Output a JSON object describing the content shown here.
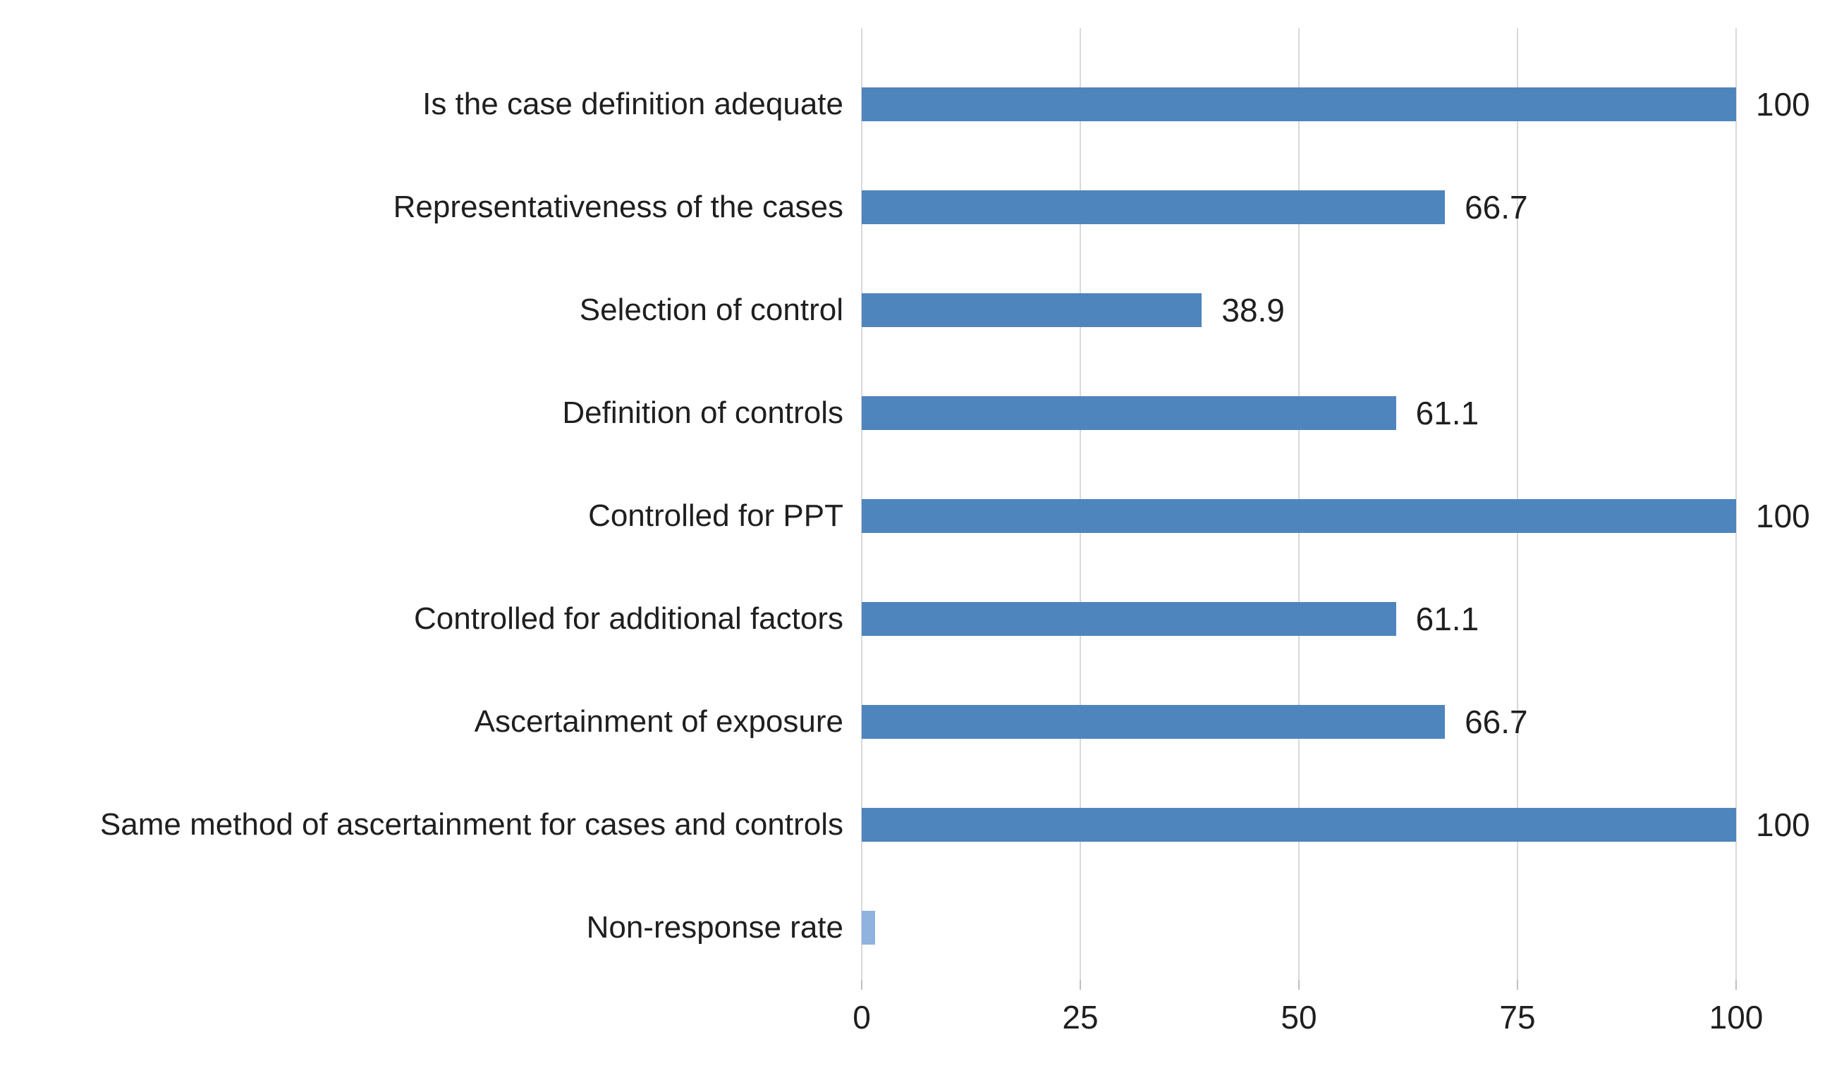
{
  "chart_data": {
    "type": "bar",
    "orientation": "horizontal",
    "title": "",
    "xlabel": "",
    "ylabel": "",
    "legend": "none",
    "grid": "vertical-only",
    "categories": [
      "Is the case definition adequate",
      "Representativeness of the cases",
      "Selection of control",
      "Definition of controls",
      "Controlled for PPT",
      "Controlled for additional factors",
      "Ascertainment of exposure",
      "Same method of ascertainment for cases and controls",
      "Non-response rate"
    ],
    "values": [
      100,
      66.7,
      38.9,
      61.1,
      100,
      61.1,
      66.7,
      100,
      1.5
    ],
    "data_labels": [
      "100",
      "66.7",
      "38.9",
      "61.1",
      "100",
      "61.1",
      "66.7",
      "100",
      ""
    ],
    "x_ticks": [
      0,
      25,
      50,
      75,
      100
    ],
    "xlim": [
      0,
      100
    ],
    "bar_colors": [
      "#4E85BC",
      "#4E85BC",
      "#4E85BC",
      "#4E85BC",
      "#4E85BC",
      "#4E85BC",
      "#4E85BC",
      "#4E85BC",
      "#8FB2DF"
    ],
    "colors": {
      "bar": "#4E85BC",
      "last_bar": "#8FB2DF",
      "text": "#1f1f1f",
      "gridline": "#d9d9d9",
      "tick_mark": "#bfbfbf",
      "background": "#ffffff"
    }
  }
}
